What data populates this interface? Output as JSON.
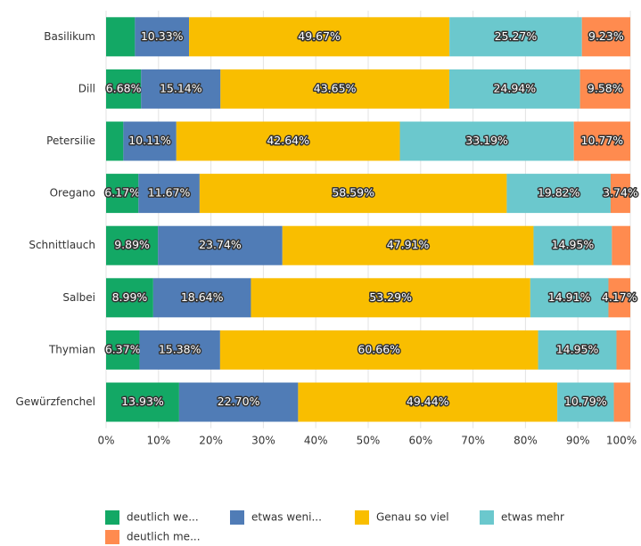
{
  "chart_data": {
    "type": "stacked-bar-horizontal",
    "categories": [
      "Basilikum",
      "Dill",
      "Petersilie",
      "Oregano",
      "Schnittlauch",
      "Salbei",
      "Thymian",
      "Gewürzfenchel"
    ],
    "series": [
      {
        "name": "deutlich we...",
        "color": "#13a865",
        "values": [
          5.5,
          6.68,
          3.29,
          6.17,
          9.89,
          8.99,
          6.37,
          13.93
        ],
        "value_labels": [
          null,
          "6.68%",
          null,
          "6.17%",
          "9.89%",
          "8.99%",
          "6.37%",
          "13.93%"
        ]
      },
      {
        "name": "etwas weni...",
        "color": "#507cb6",
        "values": [
          10.33,
          15.14,
          10.11,
          11.67,
          23.74,
          18.64,
          15.38,
          22.7
        ],
        "value_labels": [
          "10.33%",
          "15.14%",
          "10.11%",
          "11.67%",
          "23.74%",
          "18.64%",
          "15.38%",
          "22.70%"
        ]
      },
      {
        "name": "Genau so viel",
        "color": "#f9be00",
        "values": [
          49.67,
          43.65,
          42.64,
          58.59,
          47.91,
          53.29,
          60.66,
          49.44
        ],
        "value_labels": [
          "49.67%",
          "43.65%",
          "42.64%",
          "58.59%",
          "47.91%",
          "53.29%",
          "60.66%",
          "49.44%"
        ]
      },
      {
        "name": "etwas mehr",
        "color": "#6bc8cd",
        "values": [
          25.27,
          24.94,
          33.19,
          19.82,
          14.95,
          14.91,
          14.95,
          10.79
        ],
        "value_labels": [
          "25.27%",
          "24.94%",
          "33.19%",
          "19.82%",
          "14.95%",
          "14.91%",
          "14.95%",
          "10.79%"
        ]
      },
      {
        "name": "deutlich me...",
        "color": "#ff8b4f",
        "values": [
          9.23,
          9.58,
          10.77,
          3.74,
          3.51,
          4.17,
          2.64,
          3.14
        ],
        "value_labels": [
          "9.23%",
          "9.58%",
          "10.77%",
          "3.74%",
          null,
          "4.17%",
          null,
          null
        ]
      }
    ],
    "xlim": [
      0,
      100
    ],
    "xticks": [
      {
        "value": 0,
        "label": "0%"
      },
      {
        "value": 10,
        "label": "10%"
      },
      {
        "value": 20,
        "label": "20%"
      },
      {
        "value": 30,
        "label": "30%"
      },
      {
        "value": 40,
        "label": "40%"
      },
      {
        "value": 50,
        "label": "50%"
      },
      {
        "value": 60,
        "label": "60%"
      },
      {
        "value": 70,
        "label": "70%"
      },
      {
        "value": 80,
        "label": "80%"
      },
      {
        "value": 90,
        "label": "90%"
      },
      {
        "value": 100,
        "label": "100%"
      }
    ],
    "grid": true,
    "legend": "bottom"
  }
}
